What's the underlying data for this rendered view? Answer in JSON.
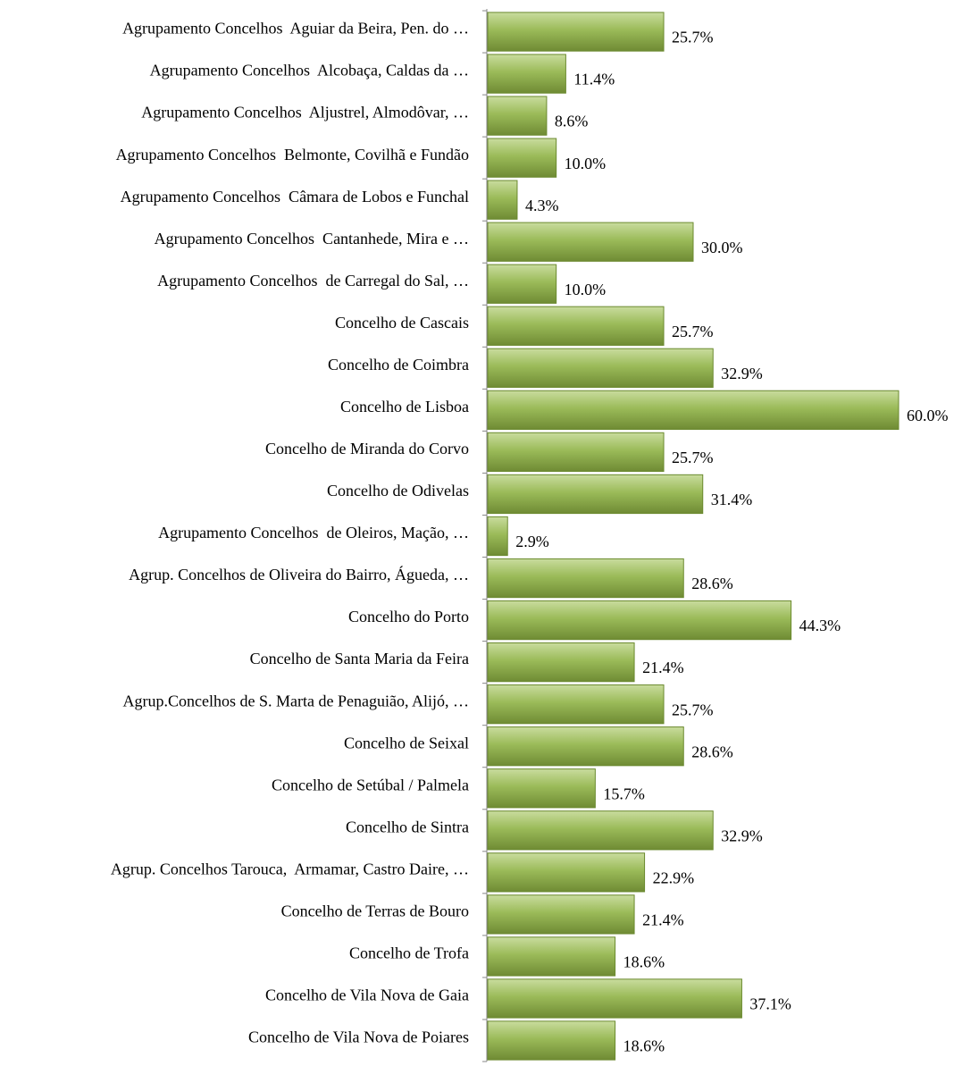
{
  "chart_data": {
    "type": "bar",
    "orientation": "horizontal",
    "color": "#9bbb59",
    "categories": [
      "Agrupamento Concelhos  Aguiar da Beira, Pen. do …",
      "Agrupamento Concelhos  Alcobaça, Caldas da …",
      "Agrupamento Concelhos  Aljustrel, Almodôvar, …",
      "Agrupamento Concelhos  Belmonte, Covilhã e Fundão",
      "Agrupamento Concelhos  Câmara de Lobos e Funchal",
      "Agrupamento Concelhos  Cantanhede, Mira e …",
      "Agrupamento Concelhos  de Carregal do Sal, …",
      "Concelho de Cascais",
      "Concelho de Coimbra",
      "Concelho de Lisboa",
      "Concelho de Miranda do Corvo",
      "Concelho de Odivelas",
      "Agrupamento Concelhos  de Oleiros, Mação, …",
      "Agrup. Concelhos de Oliveira do Bairro, Águeda, …",
      "Concelho do Porto",
      "Concelho de Santa Maria da Feira",
      "Agrup.Concelhos de S. Marta de Penaguião, Alijó, …",
      "Concelho de Seixal",
      "Concelho de Setúbal / Palmela",
      "Concelho de Sintra",
      "Agrup. Concelhos Tarouca,  Armamar, Castro Daire, …",
      "Concelho de Terras de Bouro",
      "Concelho de Trofa",
      "Concelho de Vila Nova de Gaia",
      "Concelho de Vila Nova de Poiares"
    ],
    "values": [
      25.7,
      11.4,
      8.6,
      10.0,
      4.3,
      30.0,
      10.0,
      25.7,
      32.9,
      60.0,
      25.7,
      31.4,
      2.9,
      28.6,
      44.3,
      21.4,
      25.7,
      28.6,
      15.7,
      32.9,
      22.9,
      21.4,
      18.6,
      37.1,
      18.6
    ],
    "value_labels": [
      "25.7%",
      "11.4%",
      "8.6%",
      "10.0%",
      "4.3%",
      "30.0%",
      "10.0%",
      "25.7%",
      "32.9%",
      "60.0%",
      "25.7%",
      "31.4%",
      "2.9%",
      "28.6%",
      "44.3%",
      "21.4%",
      "25.7%",
      "28.6%",
      "15.7%",
      "32.9%",
      "22.9%",
      "21.4%",
      "18.6%",
      "37.1%",
      "18.6%"
    ]
  }
}
